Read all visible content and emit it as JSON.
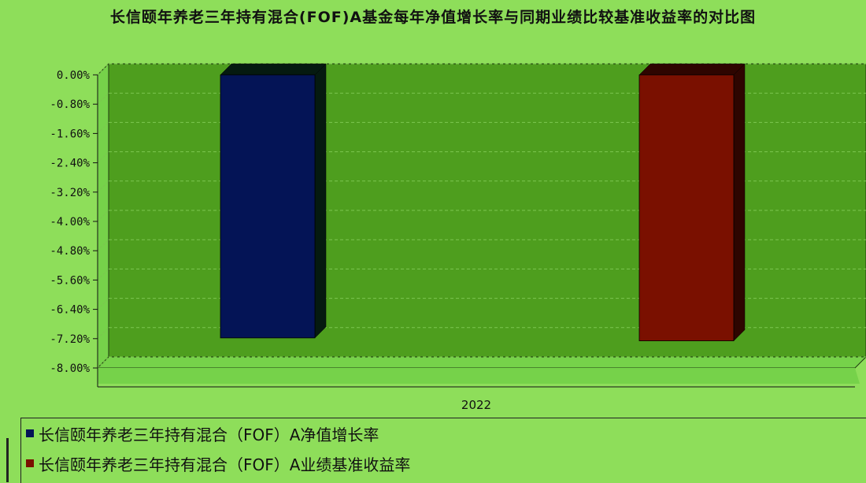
{
  "chart_data": {
    "type": "bar",
    "title": "长信颐年养老三年持有混合(FOF)A基金每年净值增长率与同期业绩比较基准收益率的对比图",
    "categories": [
      "2022"
    ],
    "series": [
      {
        "name": "长信颐年养老三年持有混合（FOF）A净值增长率",
        "values": [
          -7.18
        ],
        "color": "#041456",
        "side_color": "#051a10"
      },
      {
        "name": "长信颐年养老三年持有混合（FOF）A业绩基准收益率",
        "values": [
          -7.26
        ],
        "color": "#7a1000",
        "side_color": "#2e0500"
      }
    ],
    "yticks": [
      "0.00%",
      "-0.80%",
      "-1.60%",
      "-2.40%",
      "-3.20%",
      "-4.00%",
      "-4.80%",
      "-5.60%",
      "-6.40%",
      "-7.20%",
      "-8.00%"
    ],
    "ylim": [
      -8.0,
      0.0
    ],
    "grid": true,
    "legend_position": "bottom",
    "plot_color": "#4e9e1e",
    "plot_wall_color": "#76d24a"
  }
}
